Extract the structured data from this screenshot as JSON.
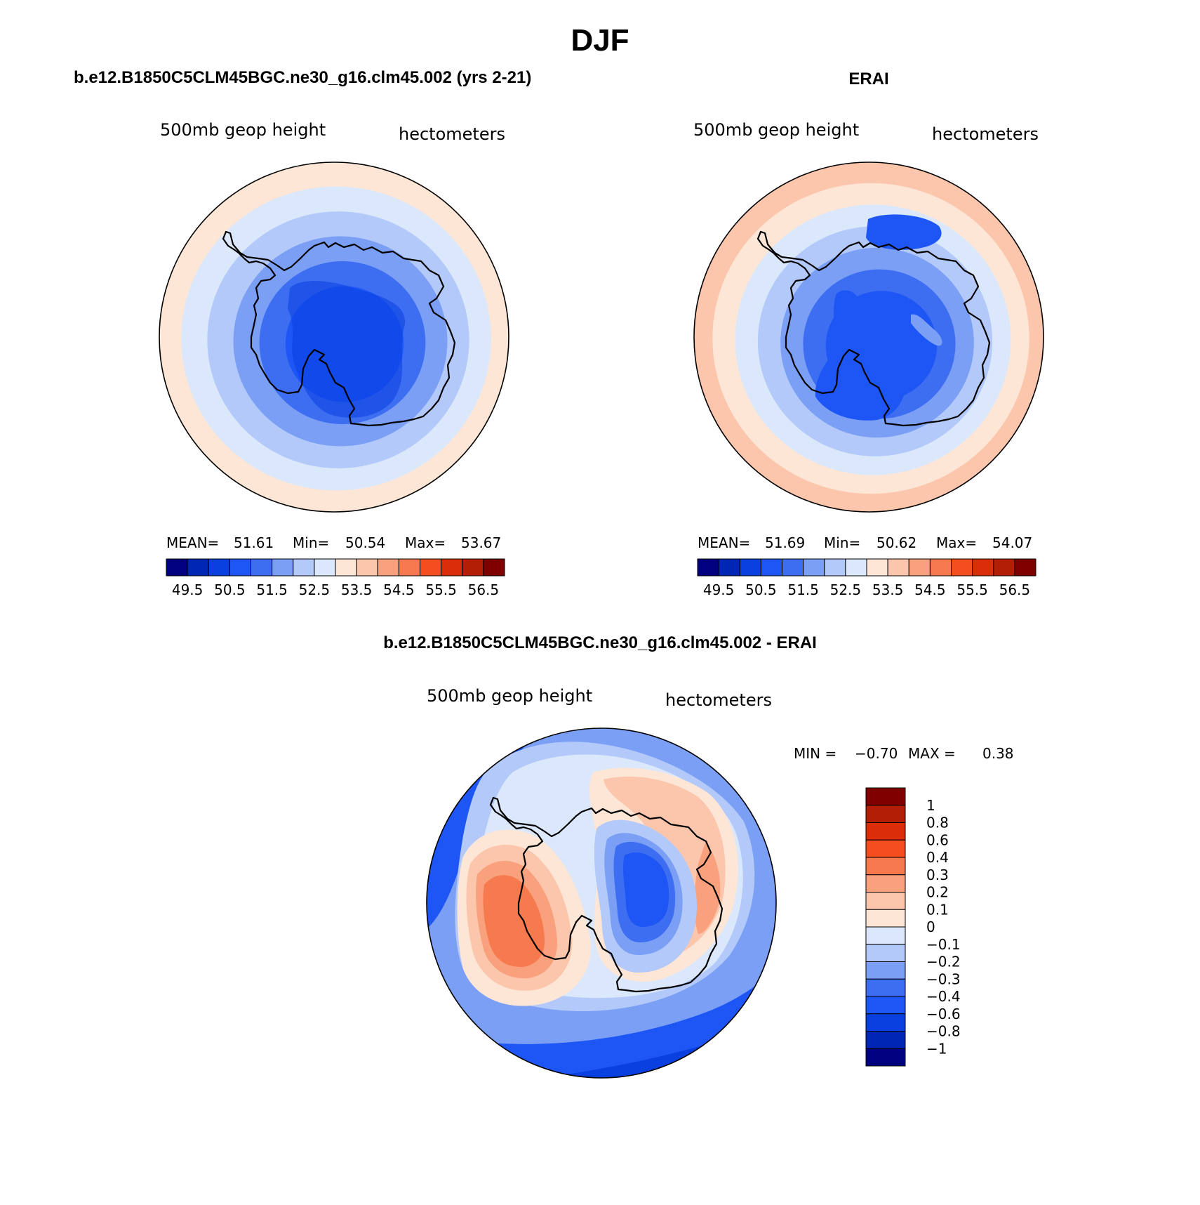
{
  "title": "DJF",
  "panels": [
    {
      "id": "model",
      "header": "b.e12.B1850C5CLM45BGC.ne30_g16.clm45.002 (yrs 2-21)",
      "variable": "500mb geop height",
      "units": "hectometers",
      "stats": {
        "mean_label": "MEAN=",
        "mean": "51.61",
        "min_label": "Min=",
        "min": "50.54",
        "max_label": "Max=",
        "max": "53.67"
      },
      "colorbar": {
        "colors": [
          "#000080",
          "#0026b5",
          "#0a3fe0",
          "#1e56f5",
          "#3d6ef2",
          "#7a9ff5",
          "#b3c9fa",
          "#dbe8fc",
          "#fde6d6",
          "#fcc6ad",
          "#f9a07d",
          "#f77a4f",
          "#f44d1f",
          "#db2e08",
          "#b31f04",
          "#800000"
        ],
        "labels": [
          "49.5",
          "50.5",
          "51.5",
          "52.5",
          "53.5",
          "54.5",
          "55.5",
          "56.5"
        ]
      },
      "field": {
        "rings": [
          {
            "color": "#fde6d6"
          },
          {
            "color": "#dbe8fc"
          },
          {
            "color": "#b3c9fa"
          },
          {
            "color": "#7a9ff5"
          },
          {
            "color": "#3d6ef2"
          },
          {
            "color": "#1e56f5"
          }
        ]
      }
    },
    {
      "id": "obs",
      "header": "ERAI",
      "variable": "500mb geop height",
      "units": "hectometers",
      "stats": {
        "mean_label": "MEAN=",
        "mean": "51.69",
        "min_label": "Min=",
        "min": "50.62",
        "max_label": "Max=",
        "max": "54.07"
      },
      "colorbar": {
        "colors": [
          "#000080",
          "#0026b5",
          "#0a3fe0",
          "#1e56f5",
          "#3d6ef2",
          "#7a9ff5",
          "#b3c9fa",
          "#dbe8fc",
          "#fde6d6",
          "#fcc6ad",
          "#f9a07d",
          "#f77a4f",
          "#f44d1f",
          "#db2e08",
          "#b31f04",
          "#800000"
        ],
        "labels": [
          "49.5",
          "50.5",
          "51.5",
          "52.5",
          "53.5",
          "54.5",
          "55.5",
          "56.5"
        ]
      },
      "field": {
        "rings": [
          {
            "color": "#fcc6ad"
          },
          {
            "color": "#fde6d6"
          },
          {
            "color": "#dbe8fc"
          },
          {
            "color": "#b3c9fa"
          },
          {
            "color": "#7a9ff5"
          },
          {
            "color": "#3d6ef2"
          },
          {
            "color": "#1e56f5"
          }
        ]
      }
    },
    {
      "id": "diff",
      "header": "b.e12.B1850C5CLM45BGC.ne30_g16.clm45.002 - ERAI",
      "variable": "500mb geop height",
      "units": "hectometers",
      "stats": {
        "min_label": "MIN =",
        "min": "−0.70",
        "max_label": "MAX =",
        "max": "0.38"
      },
      "colorbar": {
        "colors": [
          "#000080",
          "#0026b5",
          "#0a3fe0",
          "#1e56f5",
          "#3d6ef2",
          "#7a9ff5",
          "#b3c9fa",
          "#dbe8fc",
          "#fde6d6",
          "#fcc6ad",
          "#f9a07d",
          "#f77a4f",
          "#f44d1f",
          "#db2e08",
          "#b31f04",
          "#800000"
        ],
        "labels": [
          "1",
          "0.8",
          "0.6",
          "0.4",
          "0.3",
          "0.2",
          "0.1",
          "0",
          "−0.1",
          "−0.2",
          "−0.3",
          "−0.4",
          "−0.6",
          "−0.8",
          "−1"
        ]
      }
    }
  ]
}
